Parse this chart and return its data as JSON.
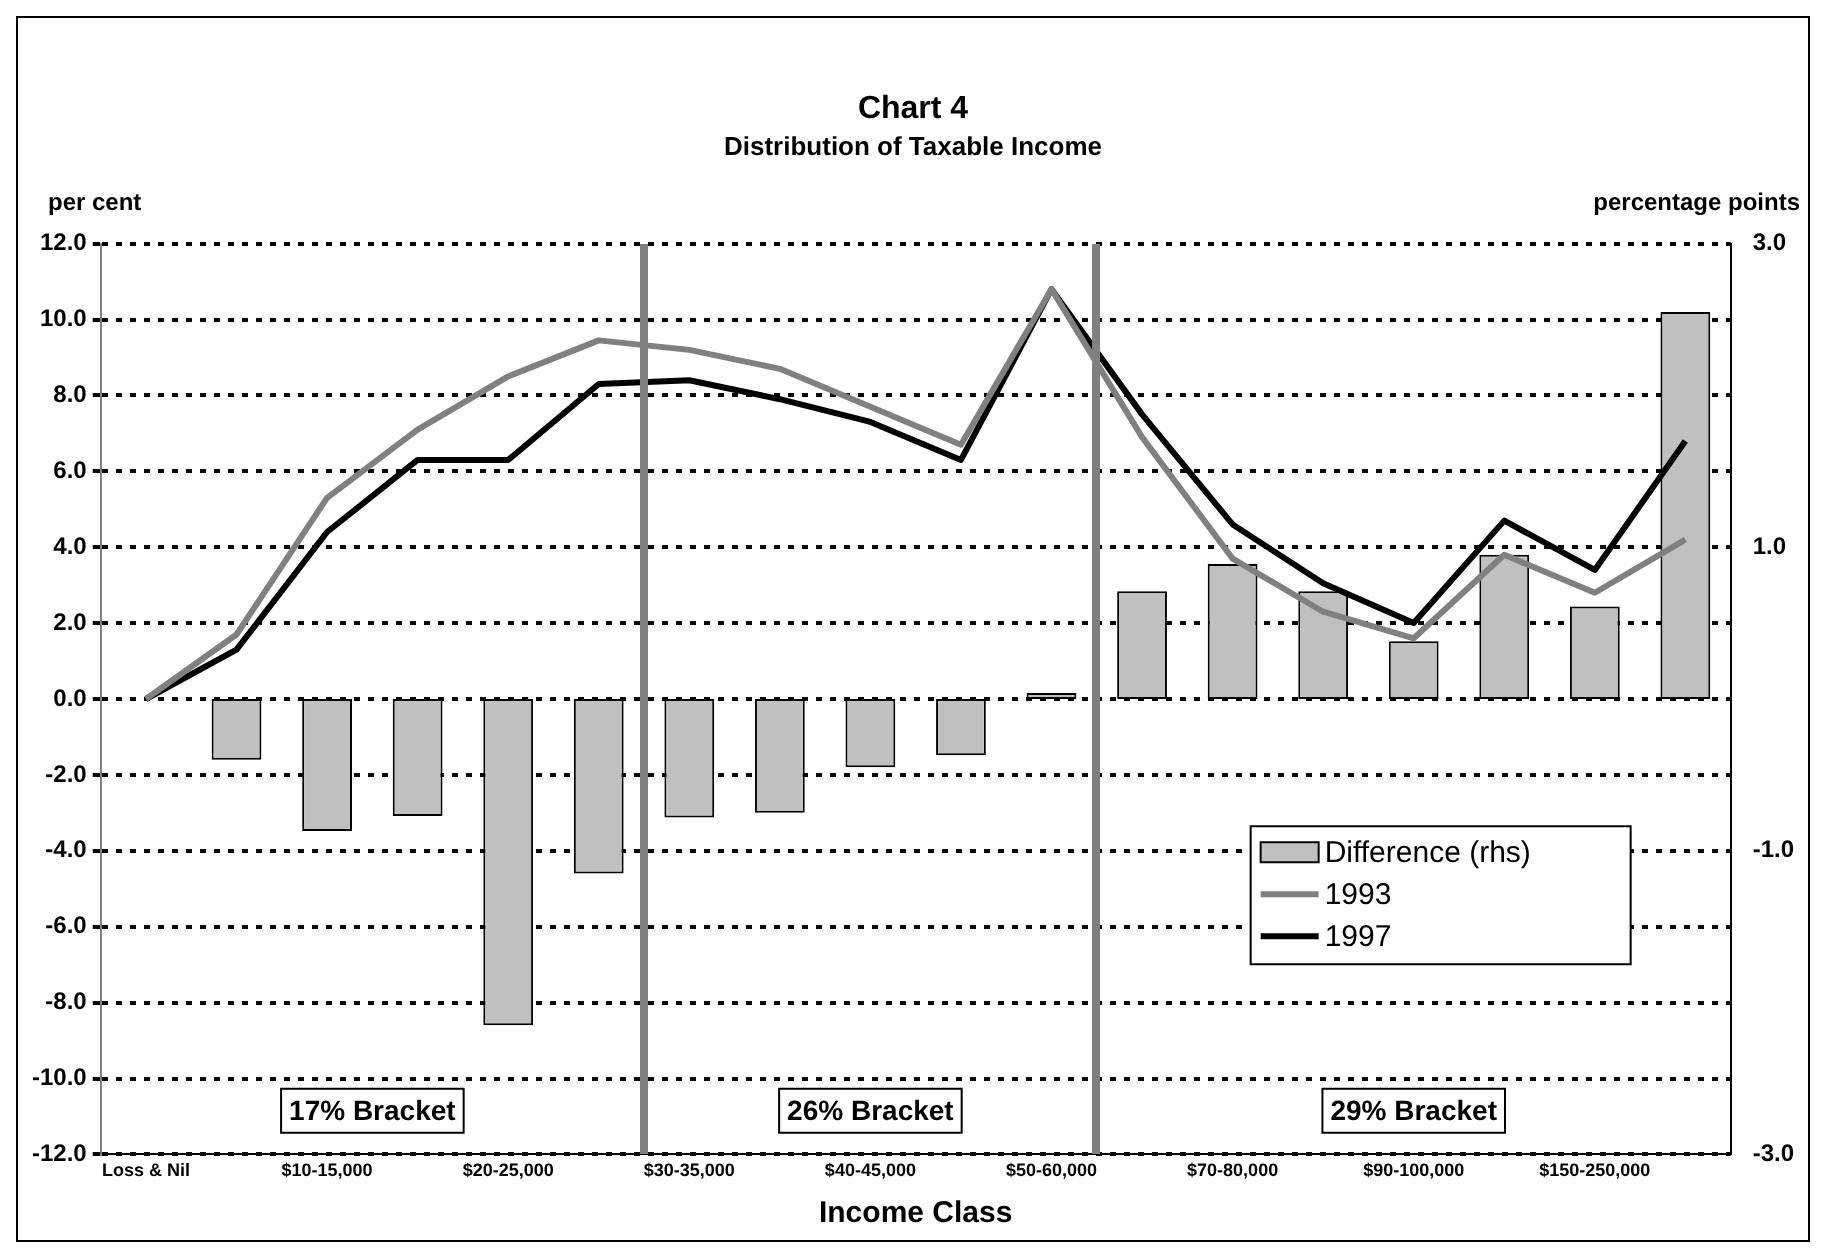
{
  "chart_data": {
    "type": "bar",
    "title": "Chart 4",
    "subtitle": "Distribution of Taxable Income",
    "xlabel": "Income Class",
    "ylabel": "per cent",
    "y2label": "percentage points",
    "categories": [
      "Loss & Nil",
      null,
      "$10-15,000",
      null,
      "$20-25,000",
      null,
      "$30-35,000",
      null,
      "$40-45,000",
      null,
      "$50-60,000",
      null,
      "$70-80,000",
      null,
      "$90-100,000",
      null,
      "$150-250,000",
      null
    ],
    "series": [
      {
        "name": "Difference (rhs)",
        "axis": "y2",
        "color": "#c0c0c0",
        "values": [
          null,
          -0.4,
          -0.87,
          -0.77,
          -2.15,
          -1.15,
          -0.78,
          -0.75,
          -0.45,
          -0.37,
          0.04,
          0.71,
          0.89,
          0.71,
          0.38,
          0.95,
          0.61,
          2.55
        ]
      },
      {
        "name": "1993",
        "type": "line",
        "color": "#808080",
        "values": [
          0,
          1.7,
          5.3,
          7.1,
          8.5,
          9.45,
          9.2,
          8.7,
          7.7,
          6.7,
          10.8,
          6.9,
          3.7,
          2.3,
          1.6,
          3.8,
          2.8,
          4.2
        ]
      },
      {
        "name": "1997",
        "type": "line",
        "color": "#000000",
        "values": [
          0,
          1.3,
          4.4,
          6.3,
          6.3,
          8.3,
          8.4,
          7.9,
          7.3,
          6.3,
          10.8,
          7.5,
          4.6,
          3.05,
          2.0,
          4.7,
          3.4,
          6.8
        ]
      }
    ],
    "ylim": [
      -12,
      12
    ],
    "yticks": [
      {
        "value": -12,
        "label": "-12.0"
      },
      {
        "value": -10,
        "label": "-10.0"
      },
      {
        "value": -8,
        "label": "-8.0"
      },
      {
        "value": -6,
        "label": "-6.0"
      },
      {
        "value": -4,
        "label": "-4.0"
      },
      {
        "value": -2,
        "label": "-2.0"
      },
      {
        "value": 0,
        "label": "0.0"
      },
      {
        "value": 2,
        "label": "2.0"
      },
      {
        "value": 4,
        "label": "4.0"
      },
      {
        "value": 6,
        "label": "6.0"
      },
      {
        "value": 8,
        "label": "8.0"
      },
      {
        "value": 10,
        "label": "10.0"
      },
      {
        "value": 12,
        "label": "12.0"
      }
    ],
    "y2lim": [
      -3,
      3
    ],
    "y2ticks": [
      {
        "value": -3,
        "label": "-3.0"
      },
      {
        "value": -1,
        "label": "-1.0"
      },
      {
        "value": 1,
        "label": "1.0"
      },
      {
        "value": 3,
        "label": "3.0"
      }
    ],
    "annotations": [
      "17% Bracket",
      "26% Bracket",
      "29% Bracket"
    ],
    "grid": "y",
    "legend": "right",
    "marker": "none",
    "line_style": "solid"
  }
}
